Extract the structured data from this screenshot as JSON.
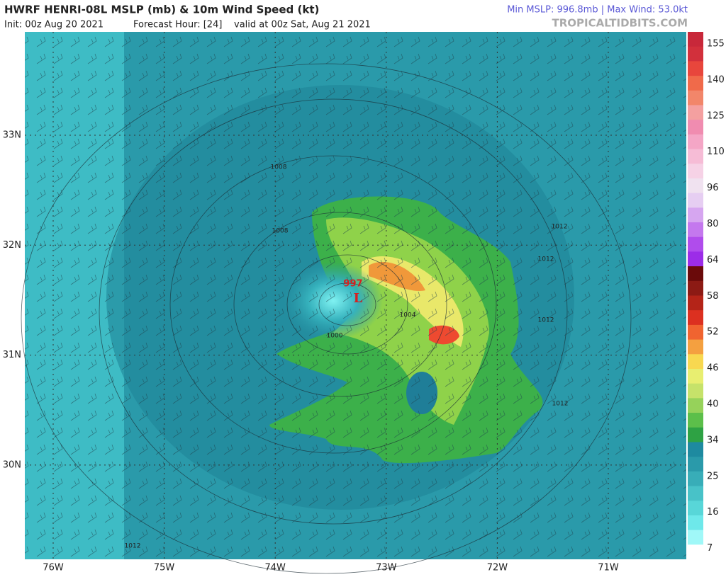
{
  "header": {
    "title": "HWRF HENRI-08L MSLP (mb) & 10m Wind Speed (kt)",
    "init": "Init: 00z Aug 20 2021",
    "forecast": "Forecast Hour: [24]",
    "valid": "valid at 00z Sat, Aug 21 2021",
    "stats": "Min MSLP: 996.8mb | Max Wind: 53.0kt",
    "source": "TROPICALTIDBITS.COM"
  },
  "map": {
    "latitudes": [
      "33N",
      "32N",
      "31N",
      "30N"
    ],
    "longitudes": [
      "76W",
      "75W",
      "74W",
      "73W",
      "72W",
      "71W"
    ],
    "low": {
      "pressure": "997",
      "symbol": "L"
    },
    "isobar_labels": [
      "1008",
      "1008",
      "1004",
      "1000",
      "1012",
      "1012",
      "1012",
      "1012",
      "1012"
    ]
  },
  "colorbar": {
    "labels": [
      "155",
      "140",
      "125",
      "110",
      "96",
      "80",
      "64",
      "58",
      "52",
      "46",
      "40",
      "34",
      "25",
      "16",
      "7"
    ]
  }
}
